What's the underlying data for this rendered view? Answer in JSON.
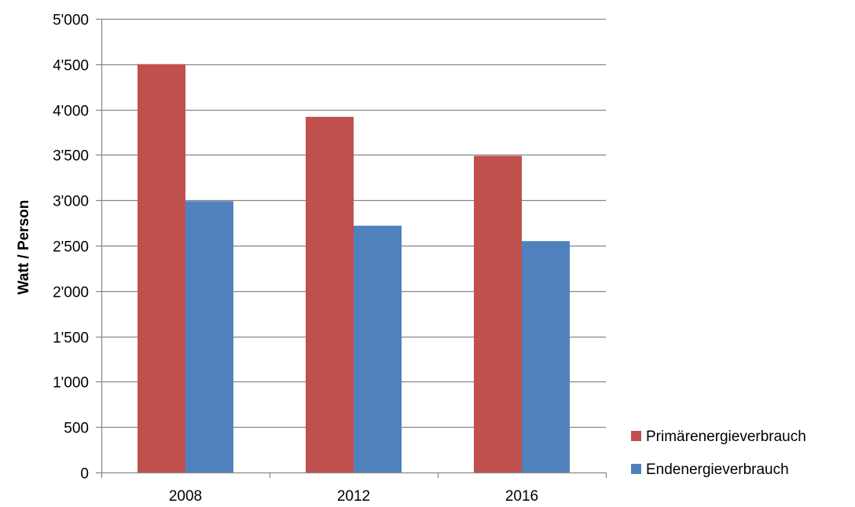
{
  "chart_data": {
    "type": "bar",
    "categories": [
      "2008",
      "2012",
      "2016"
    ],
    "series": [
      {
        "name": "Primärenergieverbrauch",
        "color": "#C0504D",
        "values": [
          4500,
          3920,
          3490
        ]
      },
      {
        "name": "Endenergieverbrauch",
        "color": "#4F81BD",
        "values": [
          2990,
          2720,
          2550
        ]
      }
    ],
    "title": "",
    "xlabel": "",
    "ylabel": "Watt / Person",
    "ylim": [
      0,
      5000
    ],
    "yticks": [
      0,
      500,
      1000,
      1500,
      2000,
      2500,
      3000,
      3500,
      4000,
      4500,
      5000
    ],
    "ytick_labels": [
      "0",
      "500",
      "1'000",
      "1'500",
      "2'000",
      "2'500",
      "3'000",
      "3'500",
      "4'000",
      "4'500",
      "5'000"
    ],
    "grid": true,
    "gridline_color": "#868686",
    "legend_position": "right"
  }
}
